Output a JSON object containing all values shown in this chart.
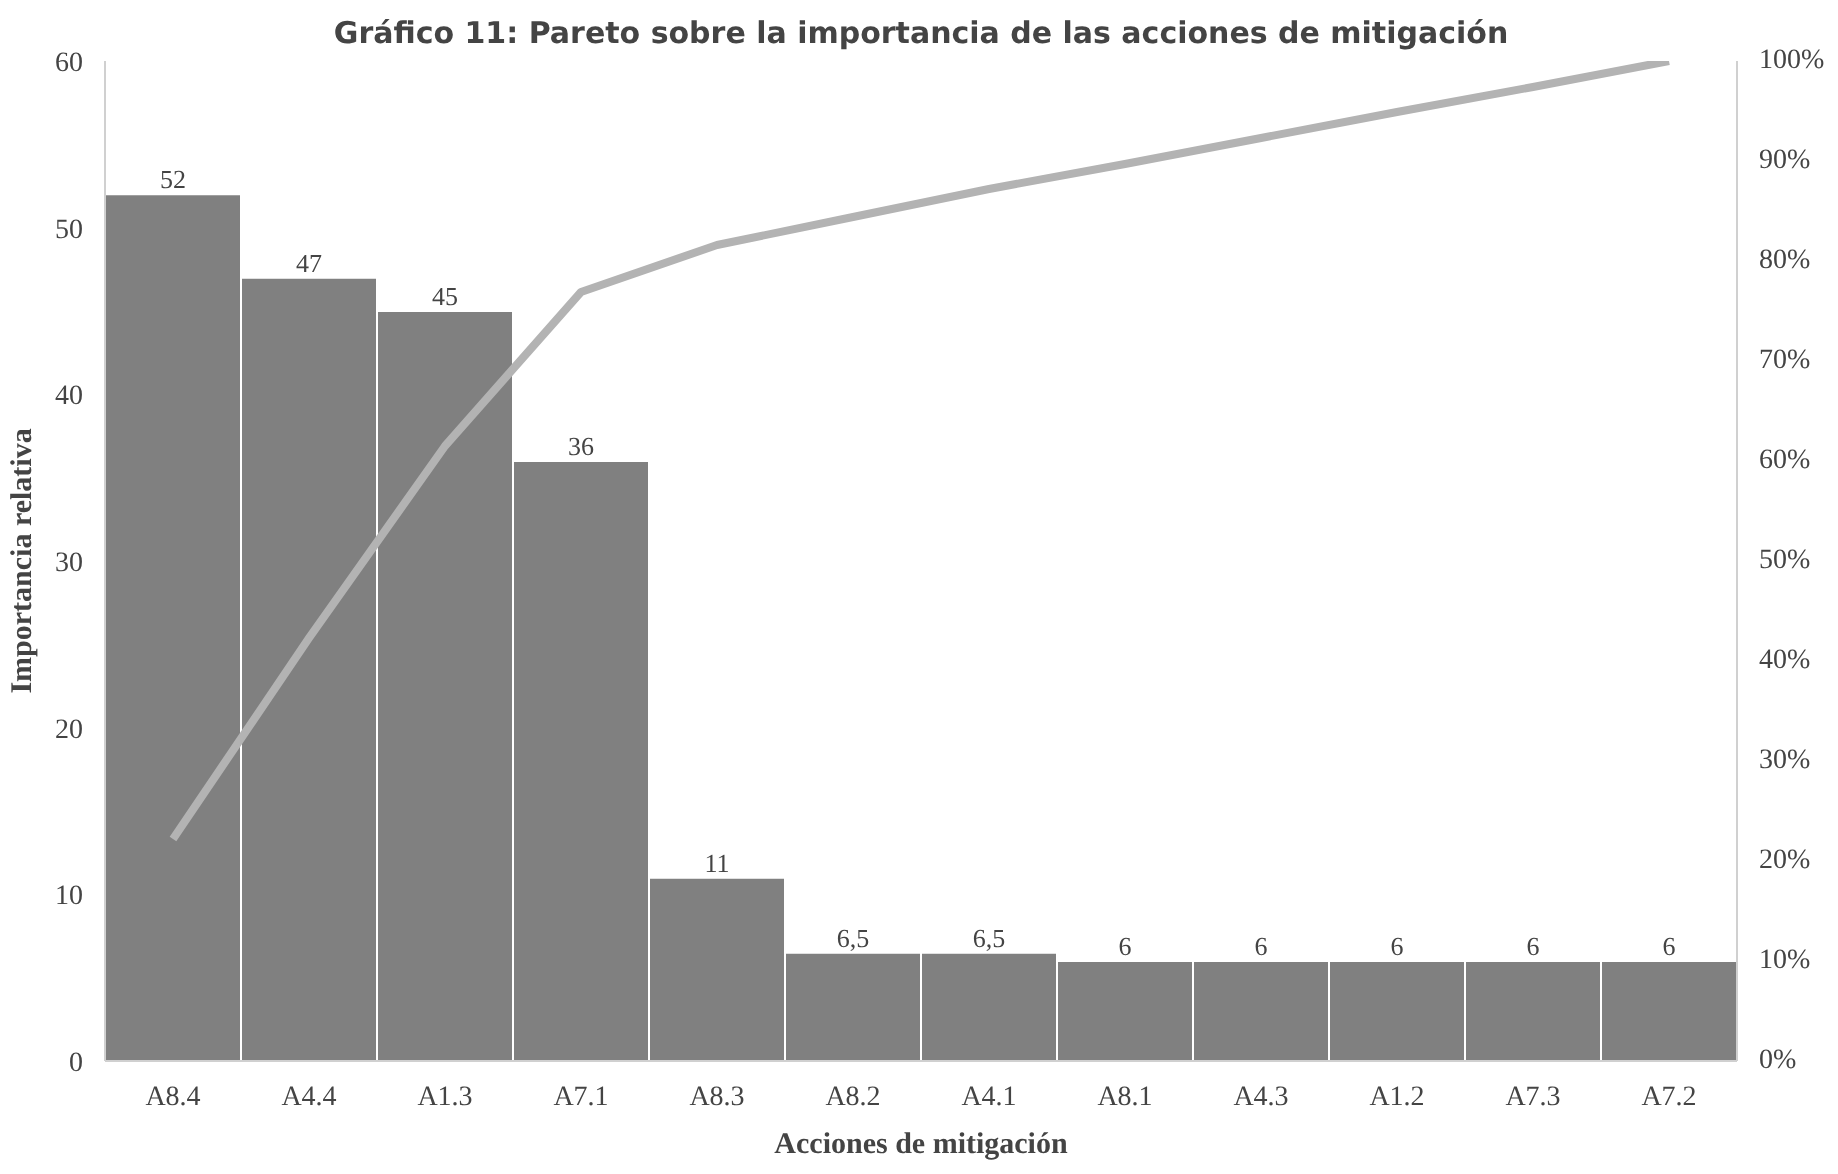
{
  "chart_data": {
    "type": "bar",
    "title": "Gráfico 11: Pareto sobre la importancia de las acciones de mitigación",
    "xlabel": "Acciones de mitigación",
    "ylabel": "Importancia relativa",
    "categories": [
      "A8.4",
      "A4.4",
      "A1.3",
      "A7.1",
      "A8.3",
      "A8.2",
      "A4.1",
      "A8.1",
      "A4.3",
      "A1.2",
      "A7.3",
      "A7.2"
    ],
    "series": [
      {
        "color": "#808080",
        "values": [
          52,
          47,
          45,
          36,
          11,
          6.5,
          6.5,
          6,
          6,
          6,
          6,
          6
        ],
        "value_labels": [
          "52",
          "47",
          "45",
          "36",
          "11",
          "6,5",
          "6,5",
          "6",
          "6",
          "6",
          "6",
          "6"
        ]
      },
      {
        "type": "line",
        "axis": "y2",
        "color": "#b3b3b3",
        "values": [
          22.2,
          42.3,
          61.5,
          76.9,
          81.6,
          84.4,
          87.2,
          89.7,
          92.3,
          94.9,
          97.4,
          100
        ]
      }
    ],
    "ylim": [
      0,
      60
    ],
    "yticks": [
      0,
      10,
      20,
      30,
      40,
      50,
      60
    ],
    "y2lim": [
      0,
      100
    ],
    "y2ticks": [
      {
        "value": 0,
        "label": "0%"
      },
      {
        "value": 10,
        "label": "10%"
      },
      {
        "value": 20,
        "label": "20%"
      },
      {
        "value": 30,
        "label": "30%"
      },
      {
        "value": 40,
        "label": "40%"
      },
      {
        "value": 50,
        "label": "50%"
      },
      {
        "value": 60,
        "label": "60%"
      },
      {
        "value": 70,
        "label": "70%"
      },
      {
        "value": 80,
        "label": "80%"
      },
      {
        "value": 90,
        "label": "90%"
      },
      {
        "value": 100,
        "label": "100%"
      }
    ],
    "grid": false,
    "marker": "none",
    "line_style": "solid"
  }
}
